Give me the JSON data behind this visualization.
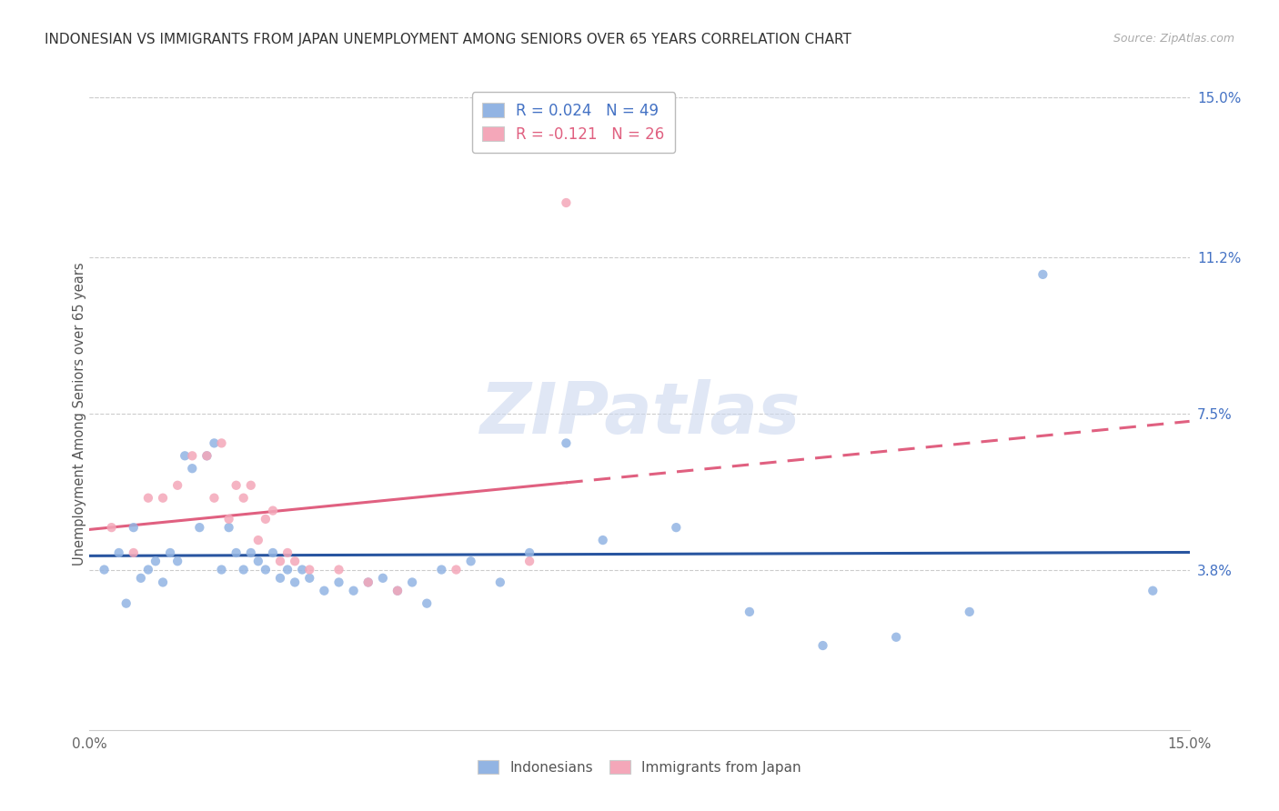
{
  "title": "INDONESIAN VS IMMIGRANTS FROM JAPAN UNEMPLOYMENT AMONG SENIORS OVER 65 YEARS CORRELATION CHART",
  "source": "Source: ZipAtlas.com",
  "ylabel": "Unemployment Among Seniors over 65 years",
  "right_ytick_vals": [
    0.038,
    0.075,
    0.112,
    0.15
  ],
  "right_ytick_labels": [
    "3.8%",
    "7.5%",
    "11.2%",
    "15.0%"
  ],
  "xmin": 0.0,
  "xmax": 0.15,
  "ymin": 0.0,
  "ymax": 0.15,
  "watermark": "ZIPatlas",
  "legend_R1": "R = 0.024",
  "legend_N1": "N = 49",
  "legend_R2": "R = -0.121",
  "legend_N2": "N = 26",
  "indonesian_color": "#92b4e3",
  "japan_color": "#f4a7b9",
  "indonesian_line_color": "#2855a0",
  "japan_line_color": "#e06080",
  "indonesian_x": [
    0.002,
    0.004,
    0.005,
    0.006,
    0.007,
    0.008,
    0.009,
    0.01,
    0.011,
    0.012,
    0.013,
    0.014,
    0.015,
    0.016,
    0.017,
    0.018,
    0.019,
    0.02,
    0.021,
    0.022,
    0.023,
    0.024,
    0.025,
    0.026,
    0.027,
    0.028,
    0.029,
    0.03,
    0.032,
    0.034,
    0.036,
    0.038,
    0.04,
    0.042,
    0.044,
    0.046,
    0.048,
    0.052,
    0.056,
    0.06,
    0.065,
    0.07,
    0.08,
    0.09,
    0.1,
    0.11,
    0.12,
    0.13,
    0.145
  ],
  "indonesian_y": [
    0.038,
    0.042,
    0.03,
    0.048,
    0.036,
    0.038,
    0.04,
    0.035,
    0.042,
    0.04,
    0.065,
    0.062,
    0.048,
    0.065,
    0.068,
    0.038,
    0.048,
    0.042,
    0.038,
    0.042,
    0.04,
    0.038,
    0.042,
    0.036,
    0.038,
    0.035,
    0.038,
    0.036,
    0.033,
    0.035,
    0.033,
    0.035,
    0.036,
    0.033,
    0.035,
    0.03,
    0.038,
    0.04,
    0.035,
    0.042,
    0.068,
    0.045,
    0.048,
    0.028,
    0.02,
    0.022,
    0.028,
    0.108,
    0.033
  ],
  "japan_x": [
    0.003,
    0.006,
    0.008,
    0.01,
    0.012,
    0.014,
    0.016,
    0.017,
    0.018,
    0.019,
    0.02,
    0.021,
    0.022,
    0.023,
    0.024,
    0.025,
    0.026,
    0.027,
    0.028,
    0.03,
    0.034,
    0.038,
    0.042,
    0.05,
    0.06,
    0.065
  ],
  "japan_y": [
    0.048,
    0.042,
    0.055,
    0.055,
    0.058,
    0.065,
    0.065,
    0.055,
    0.068,
    0.05,
    0.058,
    0.055,
    0.058,
    0.045,
    0.05,
    0.052,
    0.04,
    0.042,
    0.04,
    0.038,
    0.038,
    0.035,
    0.033,
    0.038,
    0.04,
    0.125
  ]
}
